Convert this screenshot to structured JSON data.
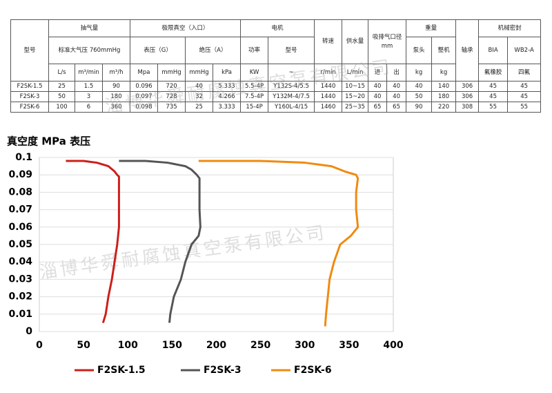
{
  "table": {
    "header": [
      [
        "型号",
        "抽气量",
        "极限真空（入口）",
        "电机",
        "转速",
        "供水量",
        "吸排气口径 mm",
        "重量",
        "轴承",
        "机械密封"
      ],
      [
        "标准大气压 760mmHg",
        "表压（G）",
        "绝压（A）",
        "功率",
        "型号",
        "泵头",
        "整机",
        "BIA",
        "WB2-A"
      ],
      [
        "L/s",
        "m³/min",
        "m³/h",
        "Mpa",
        "mmHg",
        "mmHg",
        "kPa",
        "KW",
        "~",
        "r/min",
        "L/min",
        "进",
        "出",
        "kg",
        "kg",
        "氟橡胶",
        "四氟"
      ]
    ],
    "rows": [
      [
        "F2SK-1.5",
        "25",
        "1.5",
        "90",
        "0.096",
        "720",
        "40",
        "5.333",
        "5.5-4P",
        "Y132S-4/5.5",
        "1440",
        "10~15",
        "40",
        "40",
        "40",
        "140",
        "306",
        "45",
        "45"
      ],
      [
        "F2SK-3",
        "50",
        "3",
        "180",
        "0.097",
        "728",
        "32",
        "4.266",
        "7.5-4P",
        "Y132M-4/7.5",
        "1440",
        "15~20",
        "40",
        "40",
        "50",
        "180",
        "306",
        "45",
        "45"
      ],
      [
        "F2SK-6",
        "100",
        "6",
        "360",
        "0.098",
        "735",
        "25",
        "3.333",
        "15-4P",
        "Y160L-4/15",
        "1460",
        "25~35",
        "65",
        "65",
        "90",
        "220",
        "308",
        "55",
        "55"
      ]
    ]
  },
  "watermark": "淄博华舜耐腐蚀真空泵有限公司",
  "chart_data": {
    "type": "line",
    "y_label": "真空度 MPa 表压",
    "xlim": [
      0,
      400
    ],
    "xticks": [
      0,
      50,
      100,
      150,
      200,
      250,
      300,
      350,
      400
    ],
    "ylim": [
      0,
      0.1
    ],
    "yticks": [
      0,
      0.01,
      0.02,
      0.03,
      0.04,
      0.05,
      0.06,
      0.07,
      0.08,
      0.09,
      0.1
    ],
    "series": [
      {
        "name": "F2SK-1.5",
        "color": "#cc1f1a",
        "x": [
          30,
          50,
          65,
          78,
          85,
          88,
          90,
          90,
          90,
          90,
          88,
          85,
          82,
          78,
          75,
          72
        ],
        "values": [
          0.098,
          0.098,
          0.097,
          0.095,
          0.092,
          0.09,
          0.089,
          0.08,
          0.07,
          0.06,
          0.05,
          0.04,
          0.03,
          0.02,
          0.01,
          0.005
        ]
      },
      {
        "name": "F2SK-3",
        "color": "#555555",
        "x": [
          90,
          120,
          145,
          165,
          172,
          178,
          181,
          181,
          181,
          182,
          180,
          172,
          165,
          160,
          152,
          148,
          147
        ],
        "values": [
          0.098,
          0.098,
          0.097,
          0.095,
          0.093,
          0.09,
          0.088,
          0.08,
          0.07,
          0.06,
          0.055,
          0.05,
          0.04,
          0.03,
          0.02,
          0.01,
          0.005
        ]
      },
      {
        "name": "F2SK-6",
        "color": "#f08a10",
        "x": [
          180,
          250,
          300,
          330,
          345,
          358,
          360,
          358,
          358,
          360,
          352,
          340,
          333,
          328,
          326,
          324,
          323
        ],
        "values": [
          0.098,
          0.098,
          0.097,
          0.095,
          0.092,
          0.09,
          0.088,
          0.08,
          0.07,
          0.06,
          0.055,
          0.05,
          0.04,
          0.03,
          0.02,
          0.01,
          0.003
        ]
      }
    ]
  }
}
